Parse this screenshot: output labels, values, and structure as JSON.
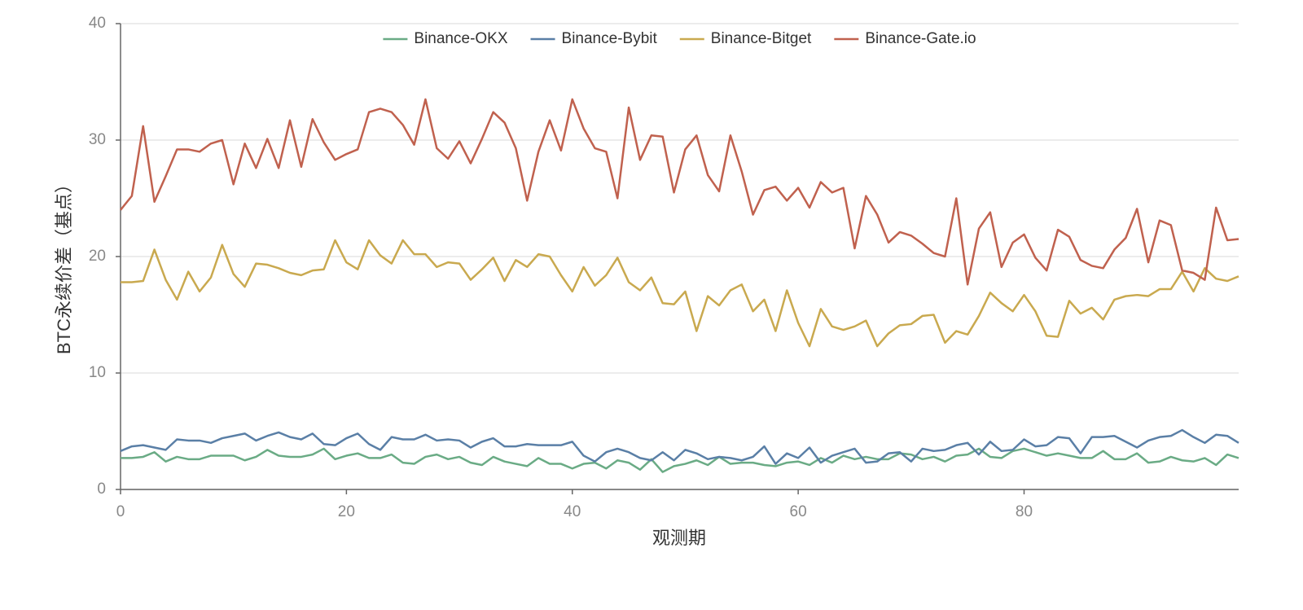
{
  "chart_data": {
    "type": "line",
    "xlabel": "观测期",
    "ylabel": "BTC永续价差（基点）",
    "x": [
      0,
      1,
      2,
      3,
      4,
      5,
      6,
      7,
      8,
      9,
      10,
      11,
      12,
      13,
      14,
      15,
      16,
      17,
      18,
      19,
      20,
      21,
      22,
      23,
      24,
      25,
      26,
      27,
      28,
      29,
      30,
      31,
      32,
      33,
      34,
      35,
      36,
      37,
      38,
      39,
      40,
      41,
      42,
      43,
      44,
      45,
      46,
      47,
      48,
      49,
      50,
      51,
      52,
      53,
      54,
      55,
      56,
      57,
      58,
      59,
      60,
      61,
      62,
      63,
      64,
      65,
      66,
      67,
      68,
      69,
      70,
      71,
      72,
      73,
      74,
      75,
      76,
      77,
      78,
      79,
      80,
      81,
      82,
      83,
      84,
      85,
      86,
      87,
      88,
      89,
      90,
      91,
      92,
      93,
      94,
      95,
      96,
      97,
      98,
      99
    ],
    "xlim": [
      0,
      99
    ],
    "xticks": [
      0,
      20,
      40,
      60,
      80
    ],
    "ylim": [
      0,
      40
    ],
    "yticks": [
      0,
      10,
      20,
      30,
      40
    ],
    "grid": true,
    "legend": "top",
    "series": [
      {
        "name": "Binance-OKX",
        "color": "#6aab85",
        "values": [
          2.7,
          2.7,
          2.8,
          3.2,
          2.4,
          2.8,
          2.6,
          2.6,
          2.9,
          2.9,
          2.9,
          2.5,
          2.8,
          3.4,
          2.9,
          2.8,
          2.8,
          3.0,
          3.5,
          2.6,
          2.9,
          3.1,
          2.7,
          2.7,
          3.0,
          2.3,
          2.2,
          2.8,
          3.0,
          2.6,
          2.8,
          2.3,
          2.1,
          2.8,
          2.4,
          2.2,
          2.0,
          2.7,
          2.2,
          2.2,
          1.8,
          2.2,
          2.3,
          1.8,
          2.5,
          2.3,
          1.7,
          2.6,
          1.5,
          2.0,
          2.2,
          2.5,
          2.1,
          2.8,
          2.2,
          2.3,
          2.3,
          2.1,
          2.0,
          2.3,
          2.4,
          2.1,
          2.7,
          2.3,
          2.9,
          2.6,
          2.8,
          2.6,
          2.6,
          3.1,
          3.0,
          2.6,
          2.8,
          2.4,
          2.9,
          3.0,
          3.5,
          2.8,
          2.7,
          3.3,
          3.5,
          3.2,
          2.9,
          3.1,
          2.9,
          2.7,
          2.7,
          3.3,
          2.6,
          2.6,
          3.1,
          2.3,
          2.4,
          2.8,
          2.5,
          2.4,
          2.7,
          2.1,
          3.0,
          2.7
        ]
      },
      {
        "name": "Binance-Bybit",
        "color": "#5a7fa6",
        "values": [
          3.3,
          3.7,
          3.8,
          3.6,
          3.4,
          4.3,
          4.2,
          4.2,
          4.0,
          4.4,
          4.6,
          4.8,
          4.2,
          4.6,
          4.9,
          4.5,
          4.3,
          4.8,
          3.9,
          3.8,
          4.4,
          4.8,
          3.9,
          3.4,
          4.5,
          4.3,
          4.3,
          4.7,
          4.2,
          4.3,
          4.2,
          3.6,
          4.1,
          4.4,
          3.7,
          3.7,
          3.9,
          3.8,
          3.8,
          3.8,
          4.1,
          2.9,
          2.4,
          3.2,
          3.5,
          3.2,
          2.7,
          2.5,
          3.2,
          2.5,
          3.4,
          3.1,
          2.6,
          2.8,
          2.7,
          2.5,
          2.8,
          3.7,
          2.2,
          3.1,
          2.7,
          3.6,
          2.3,
          2.9,
          3.2,
          3.5,
          2.3,
          2.4,
          3.1,
          3.2,
          2.4,
          3.5,
          3.3,
          3.4,
          3.8,
          4.0,
          3.0,
          4.1,
          3.3,
          3.4,
          4.3,
          3.7,
          3.8,
          4.5,
          4.4,
          3.1,
          4.5,
          4.5,
          4.6,
          4.1,
          3.6,
          4.2,
          4.5,
          4.6,
          5.1,
          4.5,
          4.0,
          4.7,
          4.6,
          4.0
        ]
      },
      {
        "name": "Binance-Bitget",
        "color": "#c9a94f",
        "values": [
          17.8,
          17.8,
          17.9,
          20.6,
          18.0,
          16.3,
          18.7,
          17.0,
          18.2,
          21.0,
          18.5,
          17.4,
          19.4,
          19.3,
          19.0,
          18.6,
          18.4,
          18.8,
          18.9,
          21.4,
          19.5,
          18.9,
          21.4,
          20.1,
          19.4,
          21.4,
          20.2,
          20.2,
          19.1,
          19.5,
          19.4,
          18.0,
          18.9,
          19.9,
          17.9,
          19.7,
          19.1,
          20.2,
          20.0,
          18.4,
          17.0,
          19.1,
          17.5,
          18.4,
          19.9,
          17.8,
          17.1,
          18.2,
          16.0,
          15.9,
          17.0,
          13.6,
          16.6,
          15.8,
          17.1,
          17.6,
          15.3,
          16.3,
          13.6,
          17.1,
          14.3,
          12.3,
          15.5,
          14.0,
          13.7,
          14.0,
          14.5,
          12.3,
          13.4,
          14.1,
          14.2,
          14.9,
          15.0,
          12.6,
          13.6,
          13.3,
          14.9,
          16.9,
          16.0,
          15.3,
          16.7,
          15.3,
          13.2,
          13.1,
          16.2,
          15.1,
          15.6,
          14.6,
          16.3,
          16.6,
          16.7,
          16.6,
          17.2,
          17.2,
          18.7,
          17.0,
          19.0,
          18.1,
          17.9,
          18.3
        ]
      },
      {
        "name": "Binance-Gate.io",
        "color": "#c0614e",
        "values": [
          24.0,
          25.2,
          31.2,
          24.7,
          26.9,
          29.2,
          29.2,
          29.0,
          29.7,
          30.0,
          26.2,
          29.7,
          27.6,
          30.1,
          27.6,
          31.7,
          27.7,
          31.8,
          29.8,
          28.3,
          28.8,
          29.2,
          32.4,
          32.7,
          32.4,
          31.3,
          29.6,
          33.5,
          29.3,
          28.4,
          29.9,
          28.0,
          30.1,
          32.4,
          31.5,
          29.3,
          24.8,
          29.0,
          31.7,
          29.1,
          33.5,
          31.0,
          29.3,
          29.0,
          25.0,
          32.8,
          28.3,
          30.4,
          30.3,
          25.5,
          29.2,
          30.4,
          27.0,
          25.6,
          30.4,
          27.3,
          23.6,
          25.7,
          26.0,
          24.8,
          25.9,
          24.2,
          26.4,
          25.5,
          25.9,
          20.7,
          25.2,
          23.6,
          21.2,
          22.1,
          21.8,
          21.1,
          20.3,
          20.0,
          25.0,
          17.6,
          22.4,
          23.8,
          19.1,
          21.2,
          21.9,
          19.9,
          18.8,
          22.3,
          21.7,
          19.7,
          19.2,
          19.0,
          20.6,
          21.6,
          24.1,
          19.5,
          23.1,
          22.7,
          18.8,
          18.6,
          18.0,
          24.2,
          21.4,
          21.5
        ]
      }
    ]
  }
}
